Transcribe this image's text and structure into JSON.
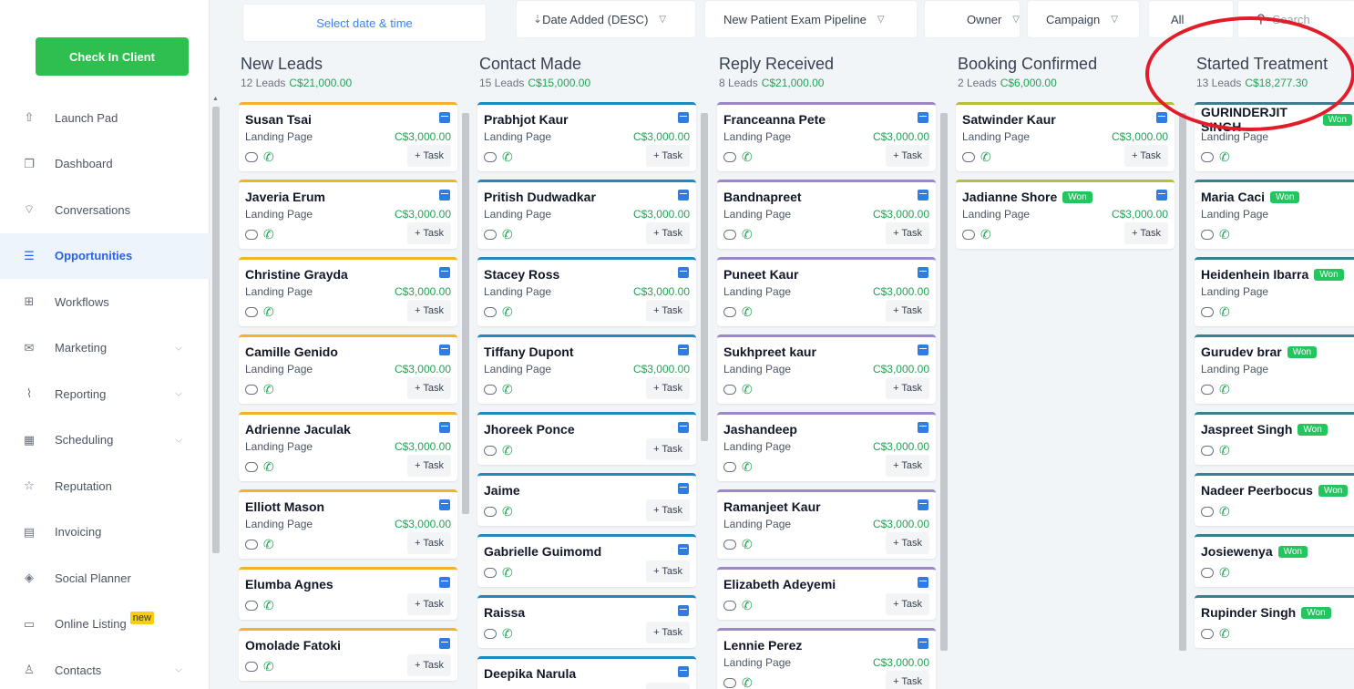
{
  "sidebar": {
    "checkin_label": "Check In Client",
    "items": [
      {
        "label": "Launch Pad",
        "icon": "rocket-icon"
      },
      {
        "label": "Dashboard",
        "icon": "dashboard-icon"
      },
      {
        "label": "Conversations",
        "icon": "chat-icon"
      },
      {
        "label": "Opportunities",
        "icon": "layers-icon",
        "active": true
      },
      {
        "label": "Workflows",
        "icon": "sitemap-icon"
      },
      {
        "label": "Marketing",
        "icon": "mail-icon",
        "expandable": true
      },
      {
        "label": "Reporting",
        "icon": "chart-icon",
        "expandable": true
      },
      {
        "label": "Scheduling",
        "icon": "calendar-icon",
        "expandable": true
      },
      {
        "label": "Reputation",
        "icon": "star-icon"
      },
      {
        "label": "Invoicing",
        "icon": "invoice-icon"
      },
      {
        "label": "Social Planner",
        "icon": "social-icon"
      },
      {
        "label": "Online Listing",
        "icon": "listing-icon",
        "badge": "new"
      },
      {
        "label": "Contacts",
        "icon": "person-icon",
        "expandable": true
      }
    ]
  },
  "toolbar": {
    "date_placeholder": "Select date & time",
    "sort_label": "Date Added (DESC)",
    "pipeline_label": "New Patient Exam Pipeline",
    "owner_label": "Owner",
    "campaign_label": "Campaign",
    "all_label": "All",
    "search_placeholder": "Search"
  },
  "columns": [
    {
      "title": "New Leads",
      "count": "12 Leads",
      "amount": "C$21,000.00",
      "color": "#f5b12a",
      "cards": [
        {
          "name": "Susan Tsai",
          "source": "Landing Page",
          "value": "C$3,000.00"
        },
        {
          "name": "Javeria Erum",
          "source": "Landing Page",
          "value": "C$3,000.00"
        },
        {
          "name": "Christine Grayda",
          "source": "Landing Page",
          "value": "C$3,000.00"
        },
        {
          "name": "Camille Genido",
          "source": "Landing Page",
          "value": "C$3,000.00"
        },
        {
          "name": "Adrienne Jaculak",
          "source": "Landing Page",
          "value": "C$3,000.00"
        },
        {
          "name": "Elliott Mason",
          "source": "Landing Page",
          "value": "C$3,000.00"
        },
        {
          "name": "Elumba Agnes"
        },
        {
          "name": "Omolade Fatoki"
        }
      ]
    },
    {
      "title": "Contact Made",
      "count": "15 Leads",
      "amount": "C$15,000.00",
      "color": "#1f8ac0",
      "cards": [
        {
          "name": "Prabhjot Kaur",
          "source": "Landing Page",
          "value": "C$3,000.00"
        },
        {
          "name": "Pritish Dudwadkar",
          "source": "Landing Page",
          "value": "C$3,000.00"
        },
        {
          "name": "Stacey Ross",
          "source": "Landing Page",
          "value": "C$3,000.00"
        },
        {
          "name": "Tiffany Dupont",
          "source": "Landing Page",
          "value": "C$3,000.00"
        },
        {
          "name": "Jhoreek Ponce"
        },
        {
          "name": "Jaime"
        },
        {
          "name": "Gabrielle Guimomd"
        },
        {
          "name": "Raissa"
        },
        {
          "name": "Deepika Narula"
        }
      ]
    },
    {
      "title": "Reply Received",
      "count": "8 Leads",
      "amount": "C$21,000.00",
      "color": "#9b87c9",
      "cards": [
        {
          "name": "Franceanna Pete",
          "source": "Landing Page",
          "value": "C$3,000.00"
        },
        {
          "name": "Bandnapreet",
          "source": "Landing Page",
          "value": "C$3,000.00"
        },
        {
          "name": "Puneet Kaur",
          "source": "Landing Page",
          "value": "C$3,000.00"
        },
        {
          "name": "Sukhpreet kaur",
          "source": "Landing Page",
          "value": "C$3,000.00"
        },
        {
          "name": "Jashandeep",
          "source": "Landing Page",
          "value": "C$3,000.00"
        },
        {
          "name": "Ramanjeet Kaur",
          "source": "Landing Page",
          "value": "C$3,000.00"
        },
        {
          "name": "Elizabeth Adeyemi"
        },
        {
          "name": "Lennie Perez",
          "source": "Landing Page",
          "value": "C$3,000.00"
        }
      ]
    },
    {
      "title": "Booking Confirmed",
      "count": "2 Leads",
      "amount": "C$6,000.00",
      "color": "#b5bf3b",
      "cards": [
        {
          "name": "Satwinder Kaur",
          "source": "Landing Page",
          "value": "C$3,000.00"
        },
        {
          "name": "Jadianne Shore",
          "won": "Won",
          "source": "Landing Page",
          "value": "C$3,000.00"
        }
      ]
    },
    {
      "title": "Started Treatment",
      "count": "13 Leads",
      "amount": "C$18,277.30",
      "color": "#3d7f8f",
      "cards": [
        {
          "name": "GURINDERJIT SINGH",
          "won": "Won",
          "source": "Landing Page"
        },
        {
          "name": "Maria Caci",
          "won": "Won",
          "source": "Landing Page"
        },
        {
          "name": "Heidenhein Ibarra",
          "won": "Won",
          "source": "Landing Page"
        },
        {
          "name": "Gurudev brar",
          "won": "Won",
          "source": "Landing Page"
        },
        {
          "name": "Jaspreet Singh",
          "won": "Won"
        },
        {
          "name": "Nadeer Peerbocus",
          "won": "Won"
        },
        {
          "name": "Josiewenya",
          "won": "Won"
        },
        {
          "name": "Rupinder Singh",
          "won": "Won"
        }
      ]
    }
  ],
  "task_label": "+ Task"
}
